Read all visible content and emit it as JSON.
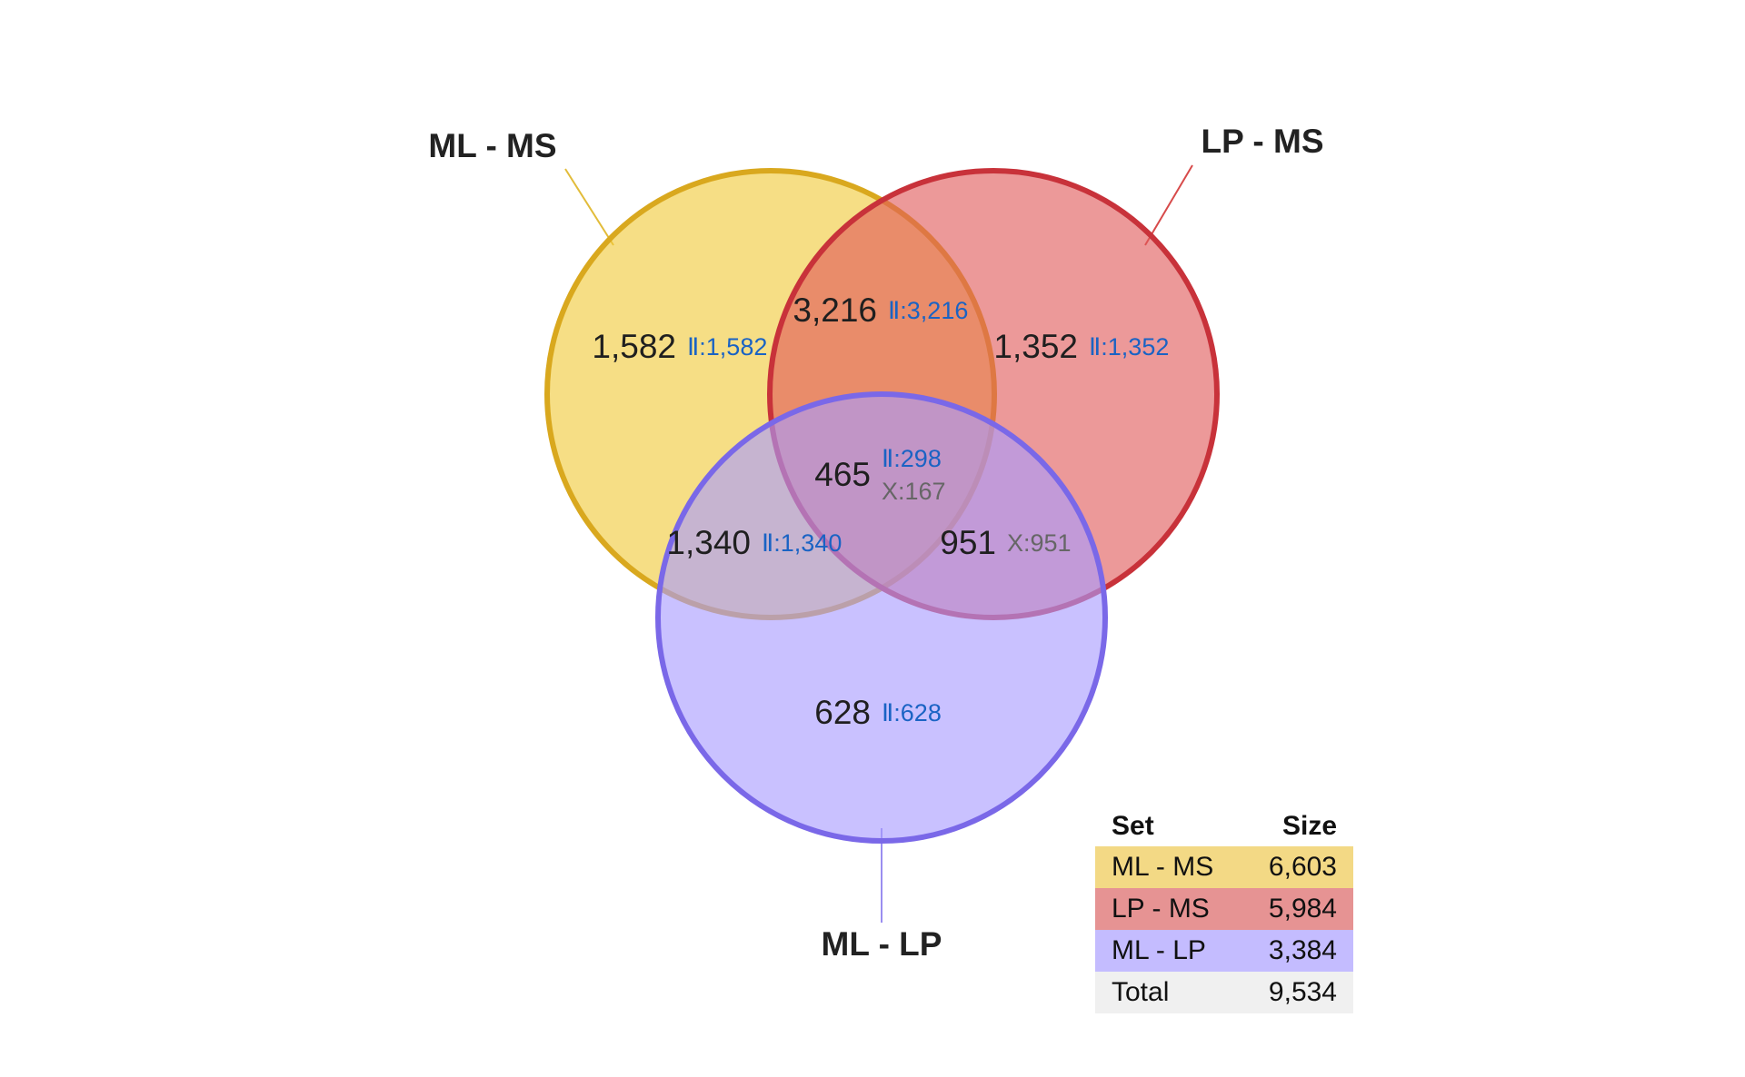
{
  "sets": [
    {
      "name": "ML - MS",
      "color": "#f0c93a",
      "stroke": "#d9a81e"
    },
    {
      "name": "LP - MS",
      "color": "#e05a5a",
      "stroke": "#c8323a"
    },
    {
      "name": "ML - LP",
      "color": "#a89bff",
      "stroke": "#7a68e8"
    }
  ],
  "regions": {
    "ml_ms_only": {
      "count": "1,582",
      "sub1": "Ⅱ:1,582"
    },
    "ml_ms_lp_ms": {
      "count": "3,216",
      "sub1": "Ⅱ:3,216"
    },
    "lp_ms_only": {
      "count": "1,352",
      "sub1": "Ⅱ:1,352"
    },
    "all_three": {
      "count": "465",
      "sub1": "Ⅱ:298",
      "sub2": "X:167"
    },
    "ml_ms_ml_lp": {
      "count": "1,340",
      "sub1": "Ⅱ:1,340"
    },
    "lp_ms_ml_lp": {
      "count": "951",
      "sub2": "X:951"
    },
    "ml_lp_only": {
      "count": "628",
      "sub1": "Ⅱ:628"
    }
  },
  "table": {
    "header_set": "Set",
    "header_size": "Size",
    "rows": [
      {
        "set": "ML - MS",
        "size": "6,603",
        "color": "#f3d985"
      },
      {
        "set": "LP - MS",
        "size": "5,984",
        "color": "#e69393"
      },
      {
        "set": "ML - LP",
        "size": "3,384",
        "color": "#c4bcff"
      },
      {
        "set": "Total",
        "size": "9,534",
        "color": "#f0f0f0"
      }
    ]
  }
}
